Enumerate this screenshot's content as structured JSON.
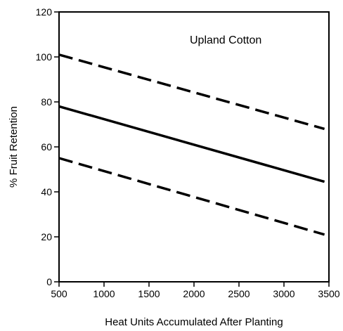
{
  "chart_data": {
    "type": "line",
    "title": "",
    "annotation": "Upland Cotton",
    "xlabel": "Heat Units Accumulated After Planting",
    "ylabel": "% Fruit Retention",
    "xlim": [
      500,
      3500
    ],
    "ylim": [
      0,
      120
    ],
    "x_ticks": [
      500,
      1000,
      1500,
      2000,
      2500,
      3000,
      3500
    ],
    "y_ticks": [
      0,
      20,
      40,
      60,
      80,
      100,
      120
    ],
    "grid": false,
    "series": [
      {
        "style": "long-dash",
        "color": "#000000",
        "x": [
          500,
          3450
        ],
        "y": [
          101,
          68
        ]
      },
      {
        "style": "solid",
        "color": "#000000",
        "x": [
          500,
          3450
        ],
        "y": [
          78,
          44.5
        ]
      },
      {
        "style": "long-dash",
        "color": "#000000",
        "x": [
          500,
          3450
        ],
        "y": [
          55,
          21
        ]
      }
    ]
  }
}
